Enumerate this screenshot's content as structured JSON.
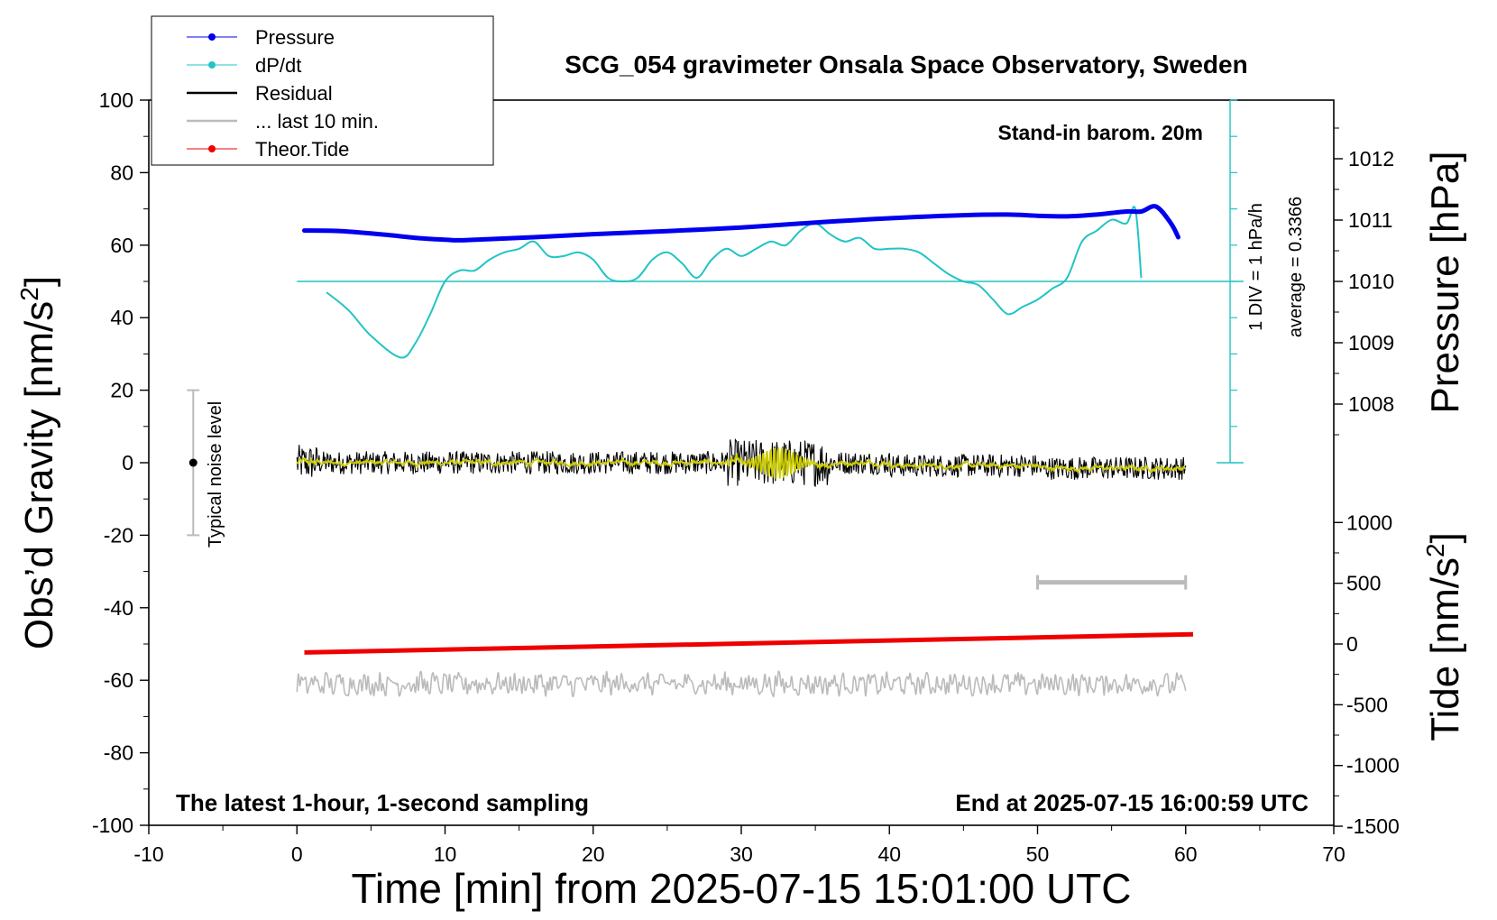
{
  "chart_data": {
    "type": "line",
    "title": "SCG_054 gravimeter Onsala Space Observatory, Sweden",
    "xlabel": "Time [min] from 2025-07-15 15:01:00 UTC",
    "ylabel_left_pre": "Obs’d Gravity [nm/s",
    "ylabel_left_sup": "2",
    "ylabel_left_post": "]",
    "ylabel_right_top": "Pressure [hPa]",
    "ylabel_right_bottom_pre": "Tide [nm/s",
    "ylabel_right_bottom_sup": "2",
    "ylabel_right_bottom_post": "]",
    "xlim": [
      -10,
      70
    ],
    "ylim": [
      -100,
      100
    ],
    "pressure_lim": [
      1007,
      1013
    ],
    "tide_lim": [
      -1500,
      1500
    ],
    "x_ticks": [
      "-10",
      "0",
      "10",
      "20",
      "30",
      "40",
      "50",
      "60",
      "70"
    ],
    "y_ticks": [
      "-100",
      "-80",
      "-60",
      "-40",
      "-20",
      "0",
      "20",
      "40",
      "60",
      "80",
      "100"
    ],
    "pressure_ticks": [
      "1008",
      "1009",
      "1010",
      "1011",
      "1012"
    ],
    "tide_ticks": [
      "-1500",
      "-1000",
      "-500",
      "0",
      "500",
      "1000"
    ],
    "annotations": {
      "stand_in": "Stand-in barom. 20m",
      "bottom_left": "The latest 1-hour, 1-second sampling",
      "bottom_right": "End at 2025-07-15 16:00:59 UTC",
      "noise": "Typical noise level",
      "div_scale": "1 DIV = 1 hPa/h",
      "average": "average = 0.3366"
    },
    "legend": [
      "Pressure",
      "dP/dt",
      "Residual",
      "... last 10 min.",
      "Theor.Tide"
    ],
    "colors": {
      "pressure": "#0000ee",
      "dpdt": "#22c4c4",
      "residual": "#000000",
      "last10": "#bbbbbb",
      "tide": "#ee0000",
      "smooth": "#cccc00"
    },
    "series": [
      {
        "name": "Pressure",
        "axis": "pressure_hPa",
        "x": [
          0.5,
          3,
          6,
          8,
          10,
          11,
          13,
          16,
          20,
          25,
          30,
          35,
          40,
          45,
          48,
          50,
          52,
          54,
          56,
          57,
          58,
          59,
          59.5
        ],
        "values": [
          1010.83,
          1010.82,
          1010.76,
          1010.71,
          1010.68,
          1010.67,
          1010.69,
          1010.72,
          1010.77,
          1010.82,
          1010.88,
          1010.96,
          1011.03,
          1011.08,
          1011.09,
          1011.07,
          1011.06,
          1011.09,
          1011.14,
          1011.14,
          1011.22,
          1010.95,
          1010.72
        ]
      },
      {
        "name": "dP/dt",
        "axis": "gravity",
        "x": [
          2,
          3.5,
          5,
          7,
          8,
          9,
          10,
          11,
          12,
          13,
          14,
          15,
          16,
          17,
          18,
          19,
          20,
          21,
          22,
          23,
          24,
          25,
          26,
          27,
          28,
          29,
          30,
          31,
          32,
          33,
          34,
          35,
          36,
          37,
          38,
          39,
          40,
          41,
          42,
          43,
          44,
          45,
          46,
          47,
          48,
          49,
          50,
          51,
          52,
          53,
          54,
          55,
          56,
          56.6,
          57
        ],
        "values": [
          47,
          42,
          35,
          29,
          33,
          41,
          50,
          53,
          53,
          56,
          58,
          59,
          61,
          57,
          57,
          58,
          56,
          51,
          50,
          51,
          56,
          58,
          55,
          51,
          56,
          59,
          57,
          59,
          61,
          60,
          64,
          66,
          63,
          61,
          62,
          59,
          59,
          59,
          58,
          55,
          52,
          50,
          49,
          45,
          41,
          43,
          45,
          48,
          51,
          61,
          64,
          67,
          66,
          70,
          51
        ]
      },
      {
        "name": "Residual",
        "axis": "gravity",
        "x_range": [
          0,
          60
        ],
        "note": "1-second residual, about ±4 nm/s² around 0, larger bursts near 30–35 min"
      },
      {
        "name": "... last 10 min.",
        "axis": "gravity",
        "x_range": [
          50,
          60
        ],
        "level": -33,
        "note": "scale bar marking the last 10 minutes"
      },
      {
        "name": "Theor.Tide",
        "axis": "tide_nm_s2",
        "x": [
          0.5,
          60.5
        ],
        "values": [
          -70,
          80
        ]
      },
      {
        "name": "Noise trace",
        "axis": "gravity",
        "x_range": [
          0,
          60
        ],
        "level": -61,
        "note": "grey trace, about ±3 nm/s² around -61"
      }
    ],
    "noise_bar": {
      "x": -7,
      "center": 0,
      "range": [
        -20,
        20
      ]
    },
    "dpdt_zero_level": 50,
    "dpdt_div_axis_x": 63
  }
}
